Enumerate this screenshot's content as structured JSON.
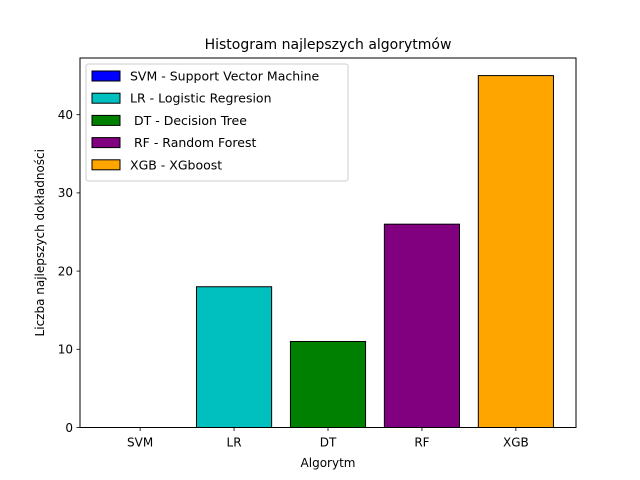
{
  "chart_data": {
    "type": "bar",
    "title": "Histogram najlepszych algorytmów",
    "xlabel": "Algorytm",
    "ylabel": "Liczba najlepszych dokładności",
    "categories": [
      "SVM",
      "LR",
      "DT",
      "RF",
      "XGB"
    ],
    "values": [
      0,
      18,
      11,
      26,
      45
    ],
    "colors": [
      "#0000ff",
      "#00bfbf",
      "#008000",
      "#800080",
      "#ffa500"
    ],
    "edge_color": "#000000",
    "ylim": [
      0,
      47.25
    ],
    "yticks": [
      0,
      10,
      20,
      30,
      40
    ],
    "grid": false,
    "legend": {
      "placement": "top-left",
      "entries": [
        "SVM - Support Vector Machine",
        "LR - Logistic Regresion",
        " DT - Decision Tree",
        " RF - Random Forest",
        "XGB - XGboost"
      ]
    }
  }
}
